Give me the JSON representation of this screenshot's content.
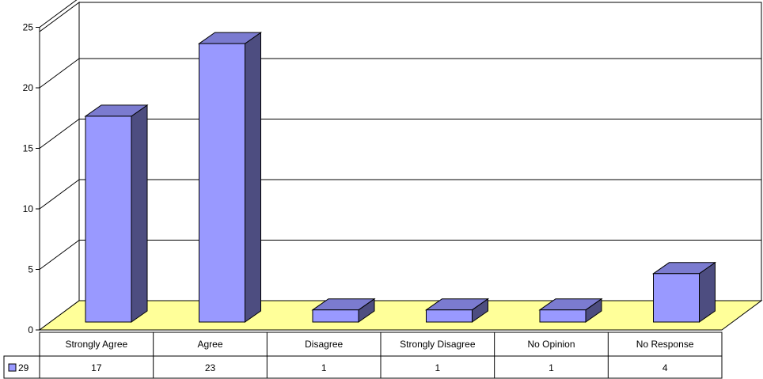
{
  "chart_data": {
    "type": "bar",
    "categories": [
      "Strongly Agree",
      "Agree",
      "Disagree",
      "Strongly Disagree",
      "No Opinion",
      "No Response"
    ],
    "series": [
      {
        "name": "29",
        "values": [
          17,
          23,
          1,
          1,
          1,
          4
        ]
      }
    ],
    "ylim": [
      0,
      25
    ],
    "yticks": [
      0,
      5,
      10,
      15,
      20,
      25
    ],
    "title": "",
    "xlabel": "",
    "ylabel": "",
    "grid": true,
    "legend_position": "data-table-left",
    "colors": {
      "bar_front": "#9999ff",
      "bar_top": "#7b7bd0",
      "bar_side": "#4d4d80",
      "floor": "#ffff99",
      "grid": "#000000"
    }
  }
}
